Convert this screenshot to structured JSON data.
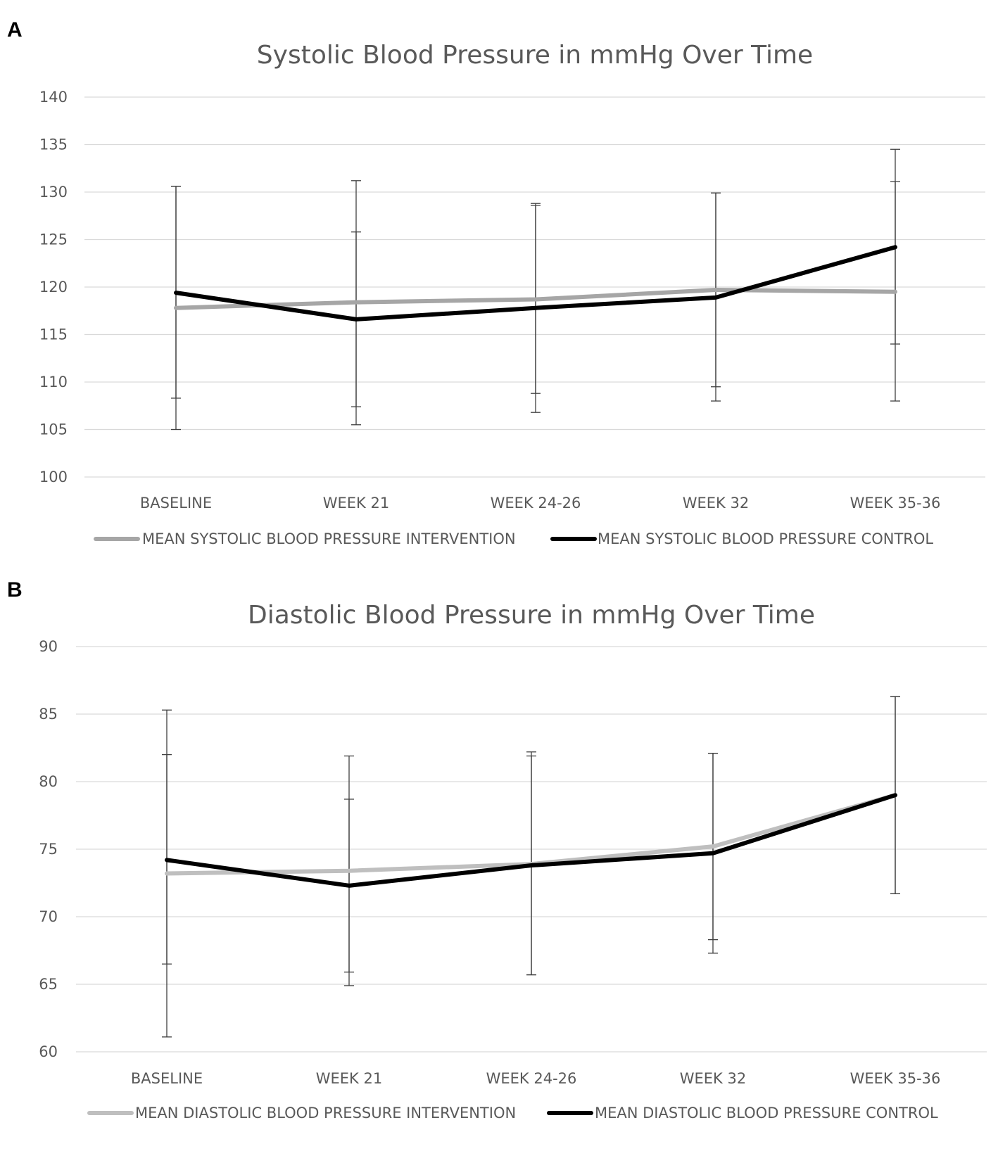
{
  "panels": {
    "a_label": "A",
    "b_label": "B"
  },
  "colors": {
    "systolic_intervention": "#a6a6a6",
    "diastolic_intervention": "#bfbfbf",
    "control": "#000000",
    "grid": "#d9d9d9",
    "text": "#595959"
  },
  "chart_data": [
    {
      "type": "line",
      "title": "Systolic Blood Pressure in mmHg Over Time",
      "categories": [
        "BASELINE",
        "WEEK 21",
        "WEEK 24-26",
        "WEEK 32",
        "WEEK 35-36"
      ],
      "ylim": [
        100,
        140
      ],
      "yticks": [
        100,
        105,
        110,
        115,
        120,
        125,
        130,
        135,
        140
      ],
      "grid": true,
      "legend_position": "bottom",
      "series": [
        {
          "name": "MEAN SYSTOLIC BLOOD PRESSURE INTERVENTION",
          "color_key": "systolic_intervention",
          "values": [
            117.8,
            118.4,
            118.7,
            119.7,
            119.5
          ],
          "error_low": [
            105.0,
            107.4,
            106.8,
            108.0,
            108.0
          ],
          "error_high": [
            130.6,
            125.8,
            128.8,
            129.9,
            131.1
          ]
        },
        {
          "name": "MEAN SYSTOLIC BLOOD PRESSURE CONTROL",
          "color_key": "control",
          "values": [
            119.4,
            116.6,
            117.8,
            118.9,
            124.2
          ],
          "error_low": [
            108.3,
            105.5,
            108.8,
            109.5,
            114.0
          ],
          "error_high": [
            130.6,
            131.2,
            128.6,
            129.9,
            134.5
          ]
        }
      ]
    },
    {
      "type": "line",
      "title": "Diastolic Blood Pressure in mmHg Over Time",
      "categories": [
        "BASELINE",
        "WEEK 21",
        "WEEK 24-26",
        "WEEK 32",
        "WEEK 35-36"
      ],
      "ylim": [
        60,
        90
      ],
      "yticks": [
        60,
        65,
        70,
        75,
        80,
        85,
        90
      ],
      "grid": true,
      "legend_position": "bottom",
      "series": [
        {
          "name": "MEAN DIASTOLIC BLOOD PRESSURE INTERVENTION",
          "color_key": "diastolic_intervention",
          "values": [
            73.2,
            73.4,
            73.9,
            75.2,
            79.0
          ],
          "error_low": [
            61.1,
            64.9,
            65.7,
            67.3,
            71.7
          ],
          "error_high": [
            85.3,
            81.9,
            82.2,
            82.1,
            86.3
          ]
        },
        {
          "name": "MEAN DIASTOLIC BLOOD PRESSURE CONTROL",
          "color_key": "control",
          "values": [
            74.2,
            72.3,
            73.8,
            74.7,
            79.0
          ],
          "error_low": [
            66.5,
            65.9,
            65.7,
            68.3,
            71.7
          ],
          "error_high": [
            82.0,
            78.7,
            81.9,
            82.1,
            86.3
          ]
        }
      ]
    }
  ]
}
